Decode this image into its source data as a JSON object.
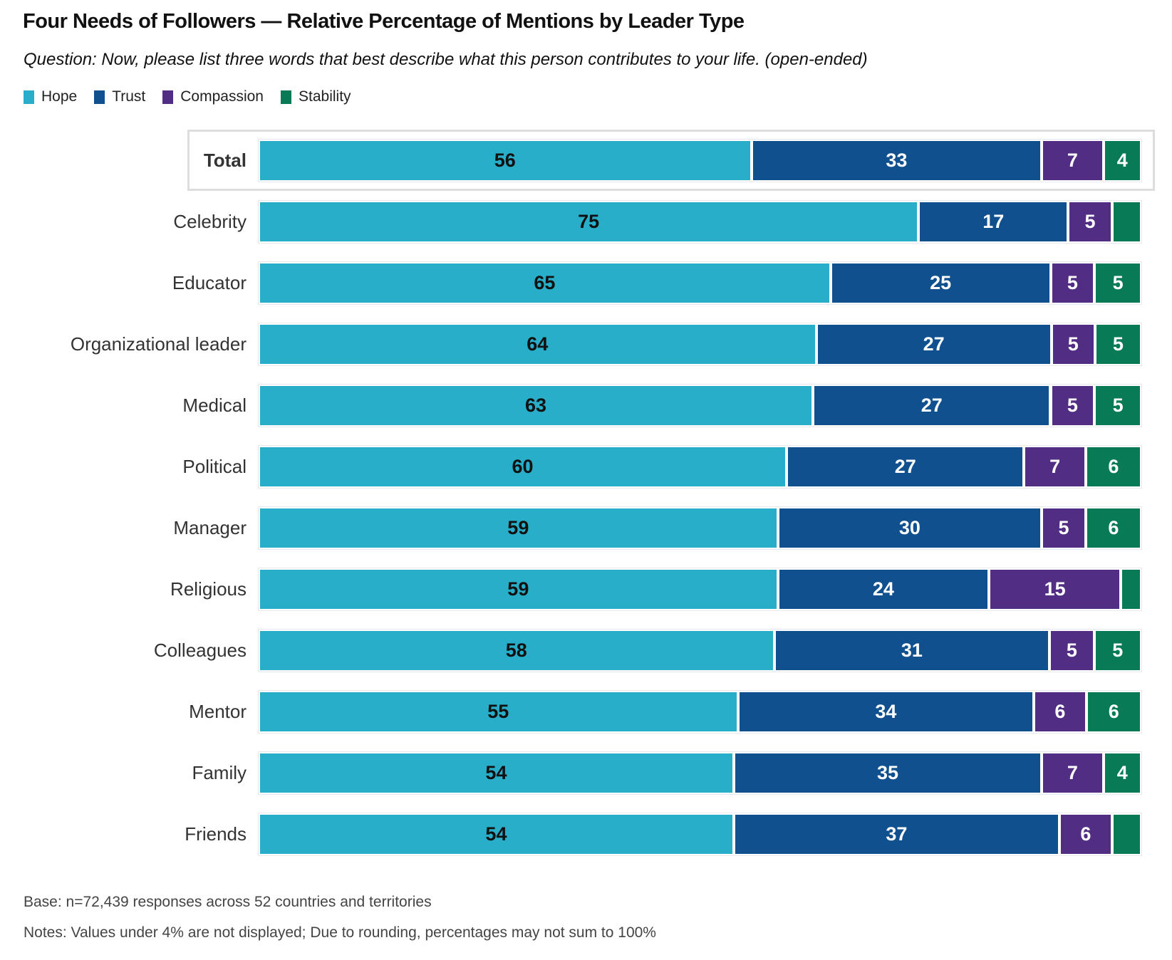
{
  "chart_data": {
    "type": "bar",
    "orientation": "horizontal",
    "stacked": true,
    "title": "Four Needs of Followers — Relative Percentage of Mentions by Leader Type",
    "subtitle": "Question: Now, please list three words that best describe what this person contributes to your life. (open-ended)",
    "xlabel": "",
    "ylabel": "",
    "xlim": [
      0,
      100
    ],
    "legend_position": "top-left",
    "categories": [
      "Total",
      "Celebrity",
      "Educator",
      "Organizational leader",
      "Medical",
      "Political",
      "Manager",
      "Religious",
      "Colleagues",
      "Mentor",
      "Family",
      "Friends"
    ],
    "series": [
      {
        "name": "Hope",
        "color": "#29aec9",
        "label_color": "#111111",
        "values": [
          56,
          75,
          65,
          64,
          63,
          60,
          59,
          59,
          58,
          55,
          54,
          54
        ]
      },
      {
        "name": "Trust",
        "color": "#10508f",
        "label_color": "#ffffff",
        "values": [
          33,
          17,
          25,
          27,
          27,
          27,
          30,
          24,
          31,
          34,
          35,
          37
        ]
      },
      {
        "name": "Compassion",
        "color": "#522d84",
        "label_color": "#ffffff",
        "values": [
          7,
          5,
          5,
          5,
          5,
          7,
          5,
          15,
          5,
          6,
          7,
          6
        ]
      },
      {
        "name": "Stability",
        "color": "#087a55",
        "label_color": "#ffffff",
        "values": [
          4,
          3,
          5,
          5,
          5,
          6,
          6,
          2,
          5,
          6,
          4,
          3
        ]
      }
    ],
    "label_threshold": 4,
    "highlighted_category": "Total"
  },
  "footer": {
    "base": "Base: n=72,439 responses across 52 countries and territories",
    "notes": "Notes: Values under 4% are not displayed; Due to rounding, percentages may not sum to 100%"
  }
}
